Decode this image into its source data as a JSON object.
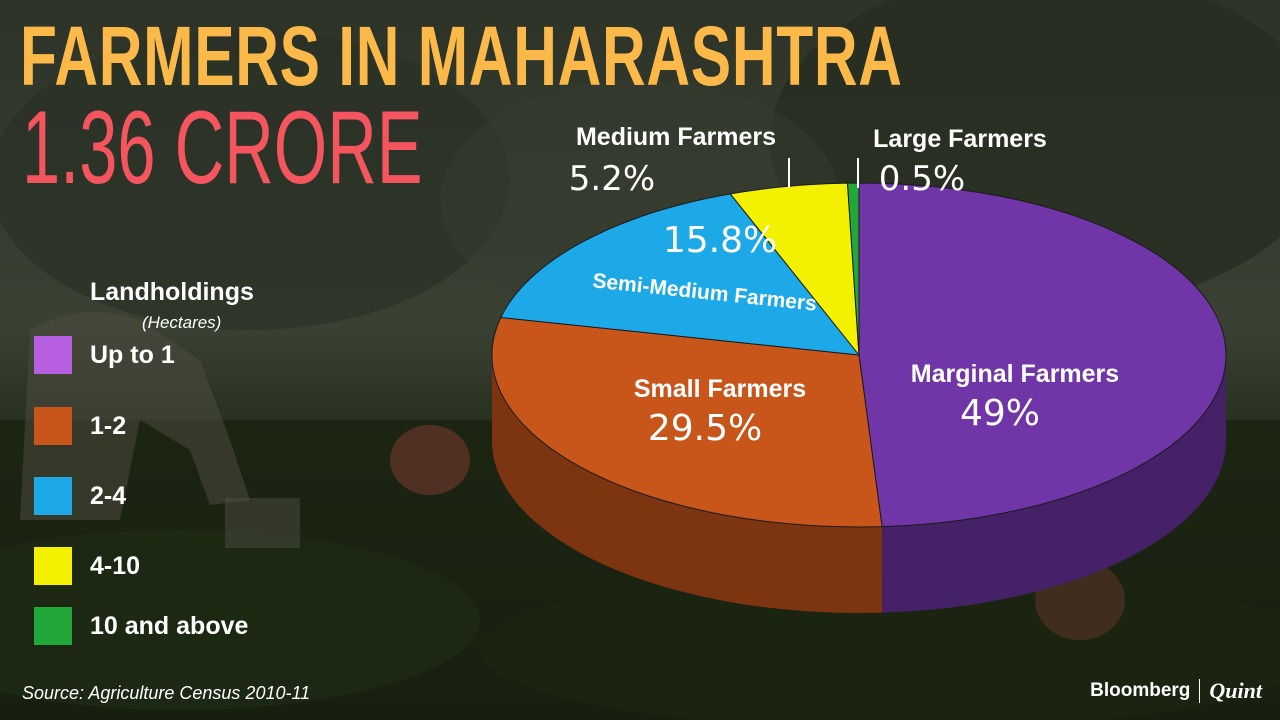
{
  "title": "FARMERS IN MAHARASHTRA",
  "subtitle": "1.36 CRORE",
  "legend": {
    "title": "Landholdings",
    "subtitle": "(Hectares)",
    "items": [
      {
        "label": "Up to 1",
        "color": "#b65fe0"
      },
      {
        "label": "1-2",
        "color": "#c8561a"
      },
      {
        "label": "2-4",
        "color": "#1da9e8"
      },
      {
        "label": "4-10",
        "color": "#f3f000"
      },
      {
        "label": "10 and above",
        "color": "#22a83a"
      }
    ]
  },
  "source": "Source: Agriculture Census 2010-11",
  "brand": {
    "left": "Bloomberg",
    "right": "Quint"
  },
  "chart_data": {
    "type": "pie",
    "categories": [
      "Marginal Farmers",
      "Small Farmers",
      "Semi-Medium Farmers",
      "Medium Farmers",
      "Large Farmers"
    ],
    "values": [
      49,
      29.5,
      15.8,
      5.2,
      0.5
    ],
    "value_labels": [
      "49%",
      "29.5%",
      "15.8%",
      "5.2%",
      "0.5%"
    ],
    "legend_keys": [
      "Up to 1",
      "1-2",
      "2-4",
      "4-10",
      "10 and above"
    ],
    "colors": [
      "#7035a7",
      "#c8561a",
      "#1da9e8",
      "#f3f000",
      "#22a83a"
    ],
    "units": "%",
    "style": "3d"
  }
}
